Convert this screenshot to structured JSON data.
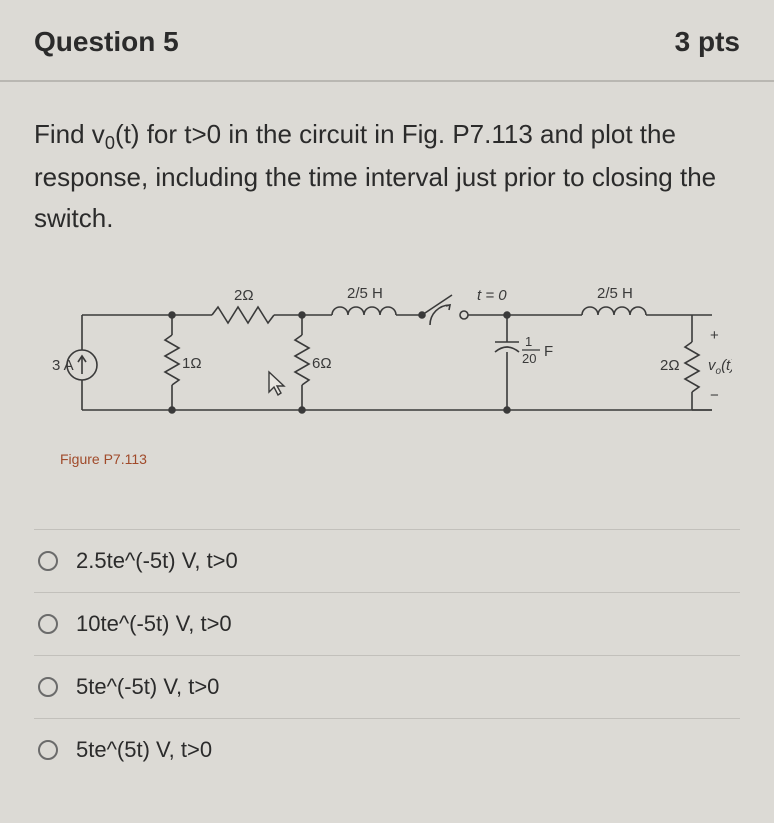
{
  "header": {
    "title": "Question 5",
    "points": "3 pts"
  },
  "prompt_html": "Find v<sub>0</sub>(t) for t>0 in the circuit in Fig. P7.113 and plot the response, including the time interval just prior to closing the switch.",
  "figure": {
    "caption": "Figure P7.113",
    "caption_color": "#a04a2a",
    "stroke": "#3a3a3a",
    "text_color": "#3a3a3a",
    "labels": {
      "src": "3 A",
      "r1": "1Ω",
      "r2": "2Ω",
      "r6": "6Ω",
      "l1": "2/5 H",
      "sw": "t = 0",
      "cap": "F",
      "cap_num": "1",
      "cap_den": "20",
      "l2": "2/5 H",
      "rout": "2Ω",
      "vout": "v",
      "vout_sub": "o",
      "vout_arg": "(t)",
      "plus": "+",
      "minus": "−"
    }
  },
  "options": [
    {
      "label": "2.5te^(-5t) V, t>0"
    },
    {
      "label": "10te^(-5t) V, t>0"
    },
    {
      "label": "5te^(-5t) V, t>0"
    },
    {
      "label": "5te^(5t) V, t>0"
    }
  ],
  "colors": {
    "background": "#dcdad5",
    "text": "#2b2b2b",
    "divider": "#c2c0bb"
  }
}
